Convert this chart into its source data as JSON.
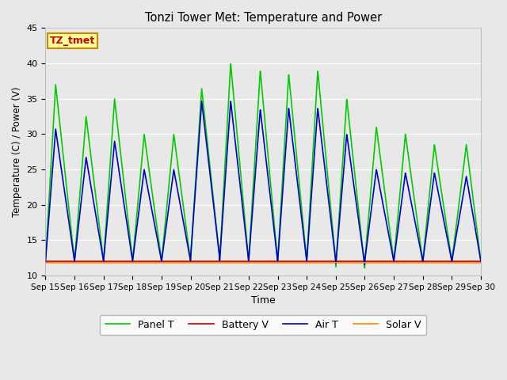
{
  "title": "Tonzi Tower Met: Temperature and Power",
  "xlabel": "Time",
  "ylabel": "Temperature (C) / Power (V)",
  "ylim": [
    10,
    45
  ],
  "yticks": [
    10,
    15,
    20,
    25,
    30,
    35,
    40,
    45
  ],
  "background_color": "#e8e8e8",
  "plot_bg_color": "#e8e8e8",
  "label_box_text": "TZ_tmet",
  "label_box_color": "#ffff99",
  "label_box_edge": "#cc8800",
  "label_box_text_color": "#cc0000",
  "xtick_labels": [
    "Sep 15",
    "Sep 16",
    "Sep 17",
    "Sep 18",
    "Sep 19",
    "Sep 20",
    "Sep 21",
    "Sep 22",
    "Sep 23",
    "Sep 24",
    "Sep 25",
    "Sep 26",
    "Sep 27",
    "Sep 28",
    "Sep 29",
    "Sep 30"
  ],
  "panel_T_color": "#00cc00",
  "battery_V_color": "#cc0000",
  "air_T_color": "#0000cc",
  "solar_V_color": "#ff8800",
  "lw": 1.2,
  "panel_peaks": [
    37.0,
    32.5,
    35.0,
    30.0,
    30.0,
    36.5,
    40.0,
    39.0,
    38.5,
    39.0,
    35.0,
    31.0,
    30.0,
    28.5,
    28.5
  ],
  "panel_troughs": [
    12.0,
    12.0,
    12.0,
    12.0,
    12.0,
    12.5,
    12.0,
    12.0,
    12.0,
    12.0,
    11.0,
    12.0,
    12.0,
    12.0,
    12.0
  ],
  "panel_peak_phase": [
    0.35,
    0.4,
    0.38,
    0.4,
    0.42,
    0.38,
    0.38,
    0.4,
    0.38,
    0.38,
    0.38,
    0.4,
    0.4,
    0.4,
    0.5
  ],
  "air_peaks": [
    30.7,
    26.7,
    29.0,
    25.0,
    25.0,
    34.7,
    34.7,
    33.5,
    33.7,
    33.7,
    30.0,
    25.0,
    24.5,
    24.5,
    24.0
  ],
  "air_troughs": [
    12.0,
    12.0,
    12.0,
    12.0,
    12.0,
    12.5,
    12.0,
    12.0,
    12.0,
    12.0,
    11.5,
    12.0,
    12.0,
    12.0,
    12.0
  ],
  "air_peak_phase": [
    0.35,
    0.4,
    0.38,
    0.4,
    0.42,
    0.38,
    0.38,
    0.4,
    0.38,
    0.38,
    0.38,
    0.4,
    0.4,
    0.4,
    0.5
  ],
  "battery_V_val": 12.0,
  "solar_V_val": 11.8
}
